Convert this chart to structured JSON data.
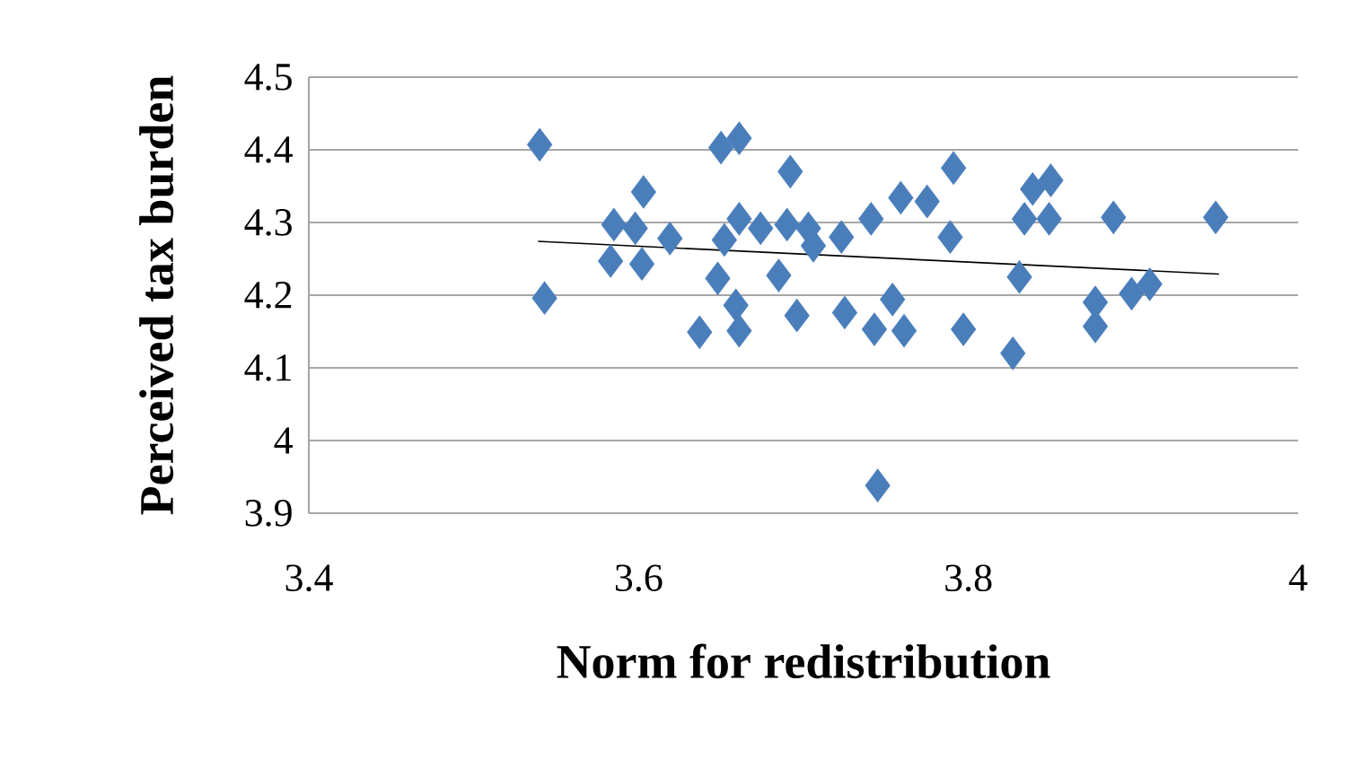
{
  "chart_data": {
    "type": "scatter",
    "xlabel": "Norm for redistribution",
    "ylabel": "Perceived tax burden",
    "xlim": [
      3.4,
      4
    ],
    "xticks": [
      3.4,
      3.6,
      3.8,
      4
    ],
    "ylim": [
      3.9,
      4.5
    ],
    "yticks": [
      3.9,
      4,
      4.1,
      4.2,
      4.3,
      4.4,
      4.5
    ],
    "grid": "y",
    "marker": "diamond",
    "series": [
      {
        "color": "#4a7ebb",
        "x": [
          3.54,
          3.543,
          3.603,
          3.585,
          3.598,
          3.583,
          3.602,
          3.619,
          3.65,
          3.661,
          3.692,
          3.648,
          3.659,
          3.637,
          3.661,
          3.685,
          3.696,
          3.652,
          3.661,
          3.674,
          3.69,
          3.703,
          3.706,
          3.723,
          3.741,
          3.759,
          3.775,
          3.791,
          3.789,
          3.725,
          3.754,
          3.743,
          3.761,
          3.797,
          3.827,
          3.831,
          3.834,
          3.839,
          3.85,
          3.849,
          3.888,
          3.95,
          3.877,
          3.877,
          3.899,
          3.91,
          3.745
        ],
        "values": [
          4.407,
          4.196,
          4.342,
          4.297,
          4.292,
          4.247,
          4.243,
          4.278,
          4.403,
          4.416,
          4.37,
          4.223,
          4.186,
          4.149,
          4.151,
          4.227,
          4.172,
          4.276,
          4.305,
          4.292,
          4.297,
          4.292,
          4.268,
          4.28,
          4.305,
          4.334,
          4.329,
          4.375,
          4.28,
          4.176,
          4.194,
          4.153,
          4.151,
          4.153,
          4.12,
          4.225,
          4.305,
          4.346,
          4.358,
          4.305,
          4.307,
          4.307,
          4.19,
          4.157,
          4.202,
          4.215,
          3.938
        ]
      },
      {
        "type": "line",
        "color": "#000000",
        "marker": "none",
        "x": [
          3.539,
          3.952
        ],
        "values": [
          4.274,
          4.229
        ]
      }
    ]
  }
}
